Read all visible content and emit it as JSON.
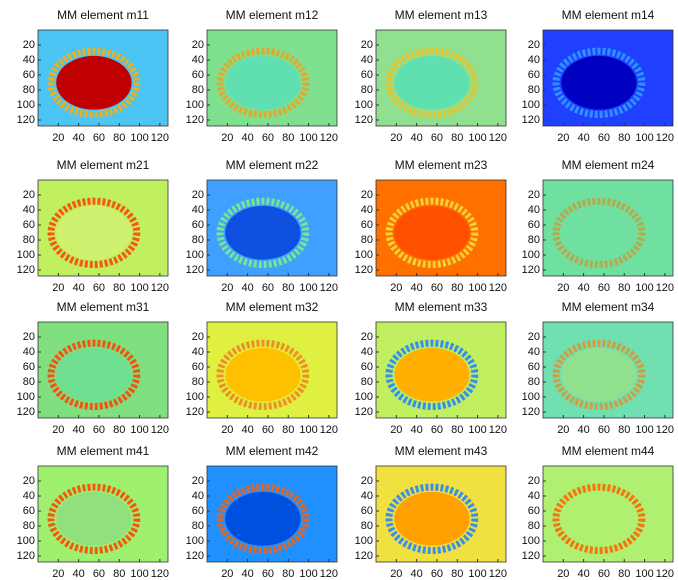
{
  "chart_data": [
    {
      "type": "heatmap",
      "title": "MM element m11",
      "xlim": [
        0,
        128
      ],
      "ylim": [
        0,
        128
      ],
      "xticks": [
        20,
        40,
        60,
        80,
        100,
        120
      ],
      "yticks": [
        20,
        40,
        60,
        80,
        100,
        120
      ],
      "colors": {
        "background": "#4cc4f4",
        "ring": "#ffb000",
        "center": "#c00000"
      }
    },
    {
      "type": "heatmap",
      "title": "MM element m12",
      "xlim": [
        0,
        128
      ],
      "ylim": [
        0,
        128
      ],
      "xticks": [
        20,
        40,
        60,
        80,
        100,
        120
      ],
      "yticks": [
        20,
        40,
        60,
        80,
        100,
        120
      ],
      "colors": {
        "background": "#7fe090",
        "ring": "#f0a020",
        "center": "#60e0b0"
      }
    },
    {
      "type": "heatmap",
      "title": "MM element m13",
      "xlim": [
        0,
        128
      ],
      "ylim": [
        0,
        128
      ],
      "xticks": [
        20,
        40,
        60,
        80,
        100,
        120
      ],
      "yticks": [
        20,
        40,
        60,
        80,
        100,
        120
      ],
      "colors": {
        "background": "#90e090",
        "ring": "#f0c020",
        "center": "#60e0b0"
      }
    },
    {
      "type": "heatmap",
      "title": "MM element m14",
      "xlim": [
        0,
        128
      ],
      "ylim": [
        0,
        128
      ],
      "xticks": [
        20,
        40,
        60,
        80,
        100,
        120
      ],
      "yticks": [
        20,
        40,
        60,
        80,
        100,
        120
      ],
      "colors": {
        "background": "#2040ff",
        "ring": "#30a0ff",
        "center": "#0000c0"
      }
    },
    {
      "type": "heatmap",
      "title": "MM element m21",
      "xlim": [
        0,
        128
      ],
      "ylim": [
        0,
        128
      ],
      "xticks": [
        20,
        40,
        60,
        80,
        100,
        120
      ],
      "yticks": [
        20,
        40,
        60,
        80,
        100,
        120
      ],
      "colors": {
        "background": "#c0f060",
        "ring": "#ff4000",
        "center": "#d0f070"
      }
    },
    {
      "type": "heatmap",
      "title": "MM element m22",
      "xlim": [
        0,
        128
      ],
      "ylim": [
        0,
        128
      ],
      "xticks": [
        20,
        40,
        60,
        80,
        100,
        120
      ],
      "yticks": [
        20,
        40,
        60,
        80,
        100,
        120
      ],
      "colors": {
        "background": "#40a0ff",
        "ring": "#80f080",
        "center": "#1050e0"
      }
    },
    {
      "type": "heatmap",
      "title": "MM element m23",
      "xlim": [
        0,
        128
      ],
      "ylim": [
        0,
        128
      ],
      "xticks": [
        20,
        40,
        60,
        80,
        100,
        120
      ],
      "yticks": [
        20,
        40,
        60,
        80,
        100,
        120
      ],
      "colors": {
        "background": "#ff7000",
        "ring": "#f0e040",
        "center": "#ff5000"
      }
    },
    {
      "type": "heatmap",
      "title": "MM element m24",
      "xlim": [
        0,
        128
      ],
      "ylim": [
        0,
        128
      ],
      "xticks": [
        20,
        40,
        60,
        80,
        100,
        120
      ],
      "yticks": [
        20,
        40,
        60,
        80,
        100,
        120
      ],
      "colors": {
        "background": "#70e0a0",
        "ring": "#c0a040",
        "center": "#70e0a0"
      }
    },
    {
      "type": "heatmap",
      "title": "MM element m31",
      "xlim": [
        0,
        128
      ],
      "ylim": [
        0,
        128
      ],
      "xticks": [
        20,
        40,
        60,
        80,
        100,
        120
      ],
      "yticks": [
        20,
        40,
        60,
        80,
        100,
        120
      ],
      "colors": {
        "background": "#80e080",
        "ring": "#ff4000",
        "center": "#70e090"
      }
    },
    {
      "type": "heatmap",
      "title": "MM element m32",
      "xlim": [
        0,
        128
      ],
      "ylim": [
        0,
        128
      ],
      "xticks": [
        20,
        40,
        60,
        80,
        100,
        120
      ],
      "yticks": [
        20,
        40,
        60,
        80,
        100,
        120
      ],
      "colors": {
        "background": "#e0f040",
        "ring": "#f08020",
        "center": "#ffc000"
      }
    },
    {
      "type": "heatmap",
      "title": "MM element m33",
      "xlim": [
        0,
        128
      ],
      "ylim": [
        0,
        128
      ],
      "xticks": [
        20,
        40,
        60,
        80,
        100,
        120
      ],
      "yticks": [
        20,
        40,
        60,
        80,
        100,
        120
      ],
      "colors": {
        "background": "#c0f060",
        "ring": "#2080ff",
        "center": "#ffb000"
      }
    },
    {
      "type": "heatmap",
      "title": "MM element m34",
      "xlim": [
        0,
        128
      ],
      "ylim": [
        0,
        128
      ],
      "xticks": [
        20,
        40,
        60,
        80,
        100,
        120
      ],
      "yticks": [
        20,
        40,
        60,
        80,
        100,
        120
      ],
      "colors": {
        "background": "#70e0b0",
        "ring": "#e09030",
        "center": "#90e090"
      }
    },
    {
      "type": "heatmap",
      "title": "MM element m41",
      "xlim": [
        0,
        128
      ],
      "ylim": [
        0,
        128
      ],
      "xticks": [
        20,
        40,
        60,
        80,
        100,
        120
      ],
      "yticks": [
        20,
        40,
        60,
        80,
        100,
        120
      ],
      "colors": {
        "background": "#a0f070",
        "ring": "#ff4000",
        "center": "#90e080"
      }
    },
    {
      "type": "heatmap",
      "title": "MM element m42",
      "xlim": [
        0,
        128
      ],
      "ylim": [
        0,
        128
      ],
      "xticks": [
        20,
        40,
        60,
        80,
        100,
        120
      ],
      "yticks": [
        20,
        40,
        60,
        80,
        100,
        120
      ],
      "colors": {
        "background": "#2090ff",
        "ring": "#ff6000",
        "center": "#0050e0"
      }
    },
    {
      "type": "heatmap",
      "title": "MM element m43",
      "xlim": [
        0,
        128
      ],
      "ylim": [
        0,
        128
      ],
      "xticks": [
        20,
        40,
        60,
        80,
        100,
        120
      ],
      "yticks": [
        20,
        40,
        60,
        80,
        100,
        120
      ],
      "colors": {
        "background": "#f0e040",
        "ring": "#2080ff",
        "center": "#ffa000"
      }
    },
    {
      "type": "heatmap",
      "title": "MM element m44",
      "xlim": [
        0,
        128
      ],
      "ylim": [
        0,
        128
      ],
      "xticks": [
        20,
        40,
        60,
        80,
        100,
        120
      ],
      "yticks": [
        20,
        40,
        60,
        80,
        100,
        120
      ],
      "colors": {
        "background": "#b0f070",
        "ring": "#ff6000",
        "center": "#b0f070"
      }
    }
  ]
}
